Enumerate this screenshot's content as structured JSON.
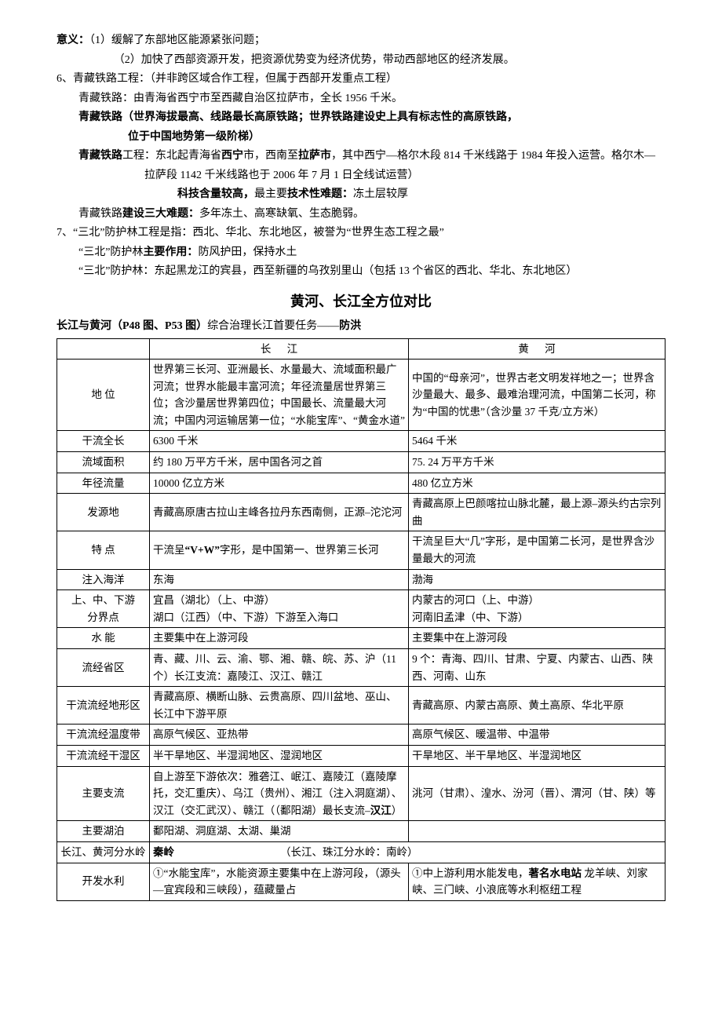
{
  "top": {
    "line1_label": "意义：",
    "line1_a": "（1）缓解了东部地区能源紧张问题；",
    "line1_b": "（2）加快了西部资源开发，把资源优势变为经济优势，带动西部地区的经济发展。",
    "l6a": "6、青藏铁路工程：（并非跨区域合作工程，但属于西部开发重点工程）",
    "l6b": "青藏铁路：由青海省西宁市至西藏自治区拉萨市，全长 1956 千米。",
    "l6c_a": "青藏铁路（世界海拔最高、线路最长高原铁路；世界铁路建设史上具有标志性的高原铁路，",
    "l6c_b": "位于中国地势第一级阶梯）",
    "l6d_a": "青藏铁路",
    "l6d_b": "工程：东北起青海省",
    "l6d_c": "西宁",
    "l6d_d": "市，西南至",
    "l6d_e": "拉萨市",
    "l6d_f": "，其中西宁—格尔木段 814 千米线路于 1984 年投入运营。格尔木—拉萨段 1142 千米线路也于 2006 年 7 月 1 日全线试运营）",
    "l6e_a": "科技含量较高，",
    "l6e_b": "最主要",
    "l6e_c": "技术性难题：",
    "l6e_d": "冻土层较厚",
    "l6f_a": "青藏铁路",
    "l6f_b": "建设三大难题：",
    "l6f_c": "多年冻土、高寒缺氧、生态脆弱。",
    "l7a": "7、“三北”防护林工程是指：西北、华北、东北地区，被誉为“世界生态工程之最”",
    "l7b_a": "“三北”防护林",
    "l7b_b": "主要作用：",
    "l7b_c": "防风护田，保持水土",
    "l7c": "“三北”防护林：东起黑龙江的宾县，西至新疆的乌孜别里山（包括 13 个省区的西北、华北、东北地区）"
  },
  "heading": "黄河、长江全方位对比",
  "subhead_a": "长江与黄河（P48 图、P53 图）",
  "subhead_b": "综合治理长江首要任务——",
  "subhead_c": "防洪",
  "table": {
    "cols": [
      "",
      "长江",
      "黄河"
    ],
    "rows": [
      [
        "地 位",
        "世界第三长河、亚洲最长、水量最大、流域面积最广河流；世界水能最丰富河流；年径流量居世界第三位；含沙量居世界第四位；中国最长、流量最大河流；中国内河运输居第一位；“水能宝库”、“黄金水道”",
        "中国的“母亲河”，世界古老文明发祥地之一；世界含沙量最大、最多、最难治理河流，中国第二长河，称为“中国的忧患”（含沙量 37 千克/立方米）"
      ],
      [
        "干流全长",
        "6300 千米",
        "5464 千米"
      ],
      [
        "流域面积",
        "约 180 万平方千米，居中国各河之首",
        "75. 24 万平方千米"
      ],
      [
        "年径流量",
        "10000 亿立方米",
        "480 亿立方米"
      ],
      [
        "发源地",
        "青藏高原唐古拉山主峰各拉丹东西南侧，正源–沱沱河",
        "青藏高原上巴颜喀拉山脉北麓，最上源–源头约古宗列曲"
      ],
      [
        "特 点",
        "干流呈“V+W”字形，是中国第一、世界第三长河",
        "干流呈巨大“几”字形，是中国第二长河，是世界含沙量最大的河流"
      ],
      [
        "注入海洋",
        "东海",
        "渤海"
      ],
      [
        "上、中、下游\n分界点",
        "宜昌（湖北）（上、中游）\n湖口（江西）（中、下游）下游至入海口",
        "内蒙古的河口（上、中游）\n河南旧孟津（中、下游）"
      ],
      [
        "水 能",
        "主要集中在上游河段",
        "主要集中在上游河段"
      ],
      [
        "流经省区",
        "青、藏、川、云、渝、鄂、湘、赣、皖、苏、沪（11 个）长江支流：嘉陵江、汉江、赣江",
        "9 个：青海、四川、甘肃、宁夏、内蒙古、山西、陕西、河南、山东"
      ],
      [
        "干流流经地形区",
        "青藏高原、横断山脉、云贵高原、四川盆地、巫山、长江中下游平原",
        "青藏高原、内蒙古高原、黄土高原、华北平原"
      ],
      [
        "干流流经温度带",
        "高原气候区、亚热带",
        "高原气候区、暖温带、中温带"
      ],
      [
        "干流流经干湿区",
        "半干旱地区、半湿润地区、湿润地区",
        "干旱地区、半干旱地区、半湿润地区"
      ],
      [
        "主要支流",
        "自上游至下游依次：雅砻江、岷江、嘉陵江（嘉陵摩托，交汇重庆）、乌江（贵州）、湘江（注入洞庭湖）、汉江（交汇武汉）、赣江（（鄱阳湖）最长支流–汉江）",
        "洮河（甘肃）、湟水、汾河（晋）、渭河（甘、陕）等"
      ],
      [
        "主要湖泊",
        "鄱阳湖、洞庭湖、太湖、巢湖",
        ""
      ],
      [
        "长江、黄河分水岭",
        "秦岭",
        "（长江、珠江分水岭：南岭）"
      ],
      [
        "开发水利",
        "①“水能宝库”，水能资源主要集中在上游河段，（源头—宜宾段和三峡段），蕴藏量占",
        "①中上游利用水能发电，著名水电站 龙羊峡、刘家峡、三门峡、小浪底等水利枢纽工程"
      ]
    ],
    "special_row15_cj_bold": "秦岭",
    "special_row15_hh_text": "（长江、珠江分水岭：南岭）",
    "special_row5_bold": "“V+W”",
    "special_row13_bold": "汉江",
    "special_row16_bold": "著名水电站"
  }
}
